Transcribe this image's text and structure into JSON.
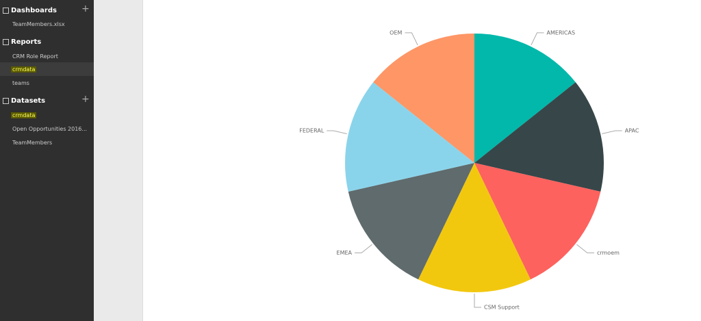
{
  "sidebar": {
    "sections": [
      {
        "title": "Dashboards",
        "items": [
          "TeamMembers.xlsx"
        ]
      },
      {
        "title": "Reports",
        "items": [
          "CRM Role Report",
          "crmdata",
          "teams"
        ]
      },
      {
        "title": "Datasets",
        "items": [
          "crmdata",
          "Open Opportunities 2016...",
          "TeamMembers"
        ]
      }
    ]
  },
  "chart_data": {
    "type": "pie",
    "categories": [
      "AMERICAS",
      "APAC",
      "crmoem",
      "CSM Support",
      "EMEA",
      "FEDERAL",
      "OEM"
    ],
    "values": [
      1,
      1,
      1,
      1,
      1,
      1,
      1
    ],
    "colors": [
      "#01B8AA",
      "#374649",
      "#FD625E",
      "#F2C80F",
      "#5F6B6D",
      "#8AD4EB",
      "#FE9666"
    ]
  }
}
